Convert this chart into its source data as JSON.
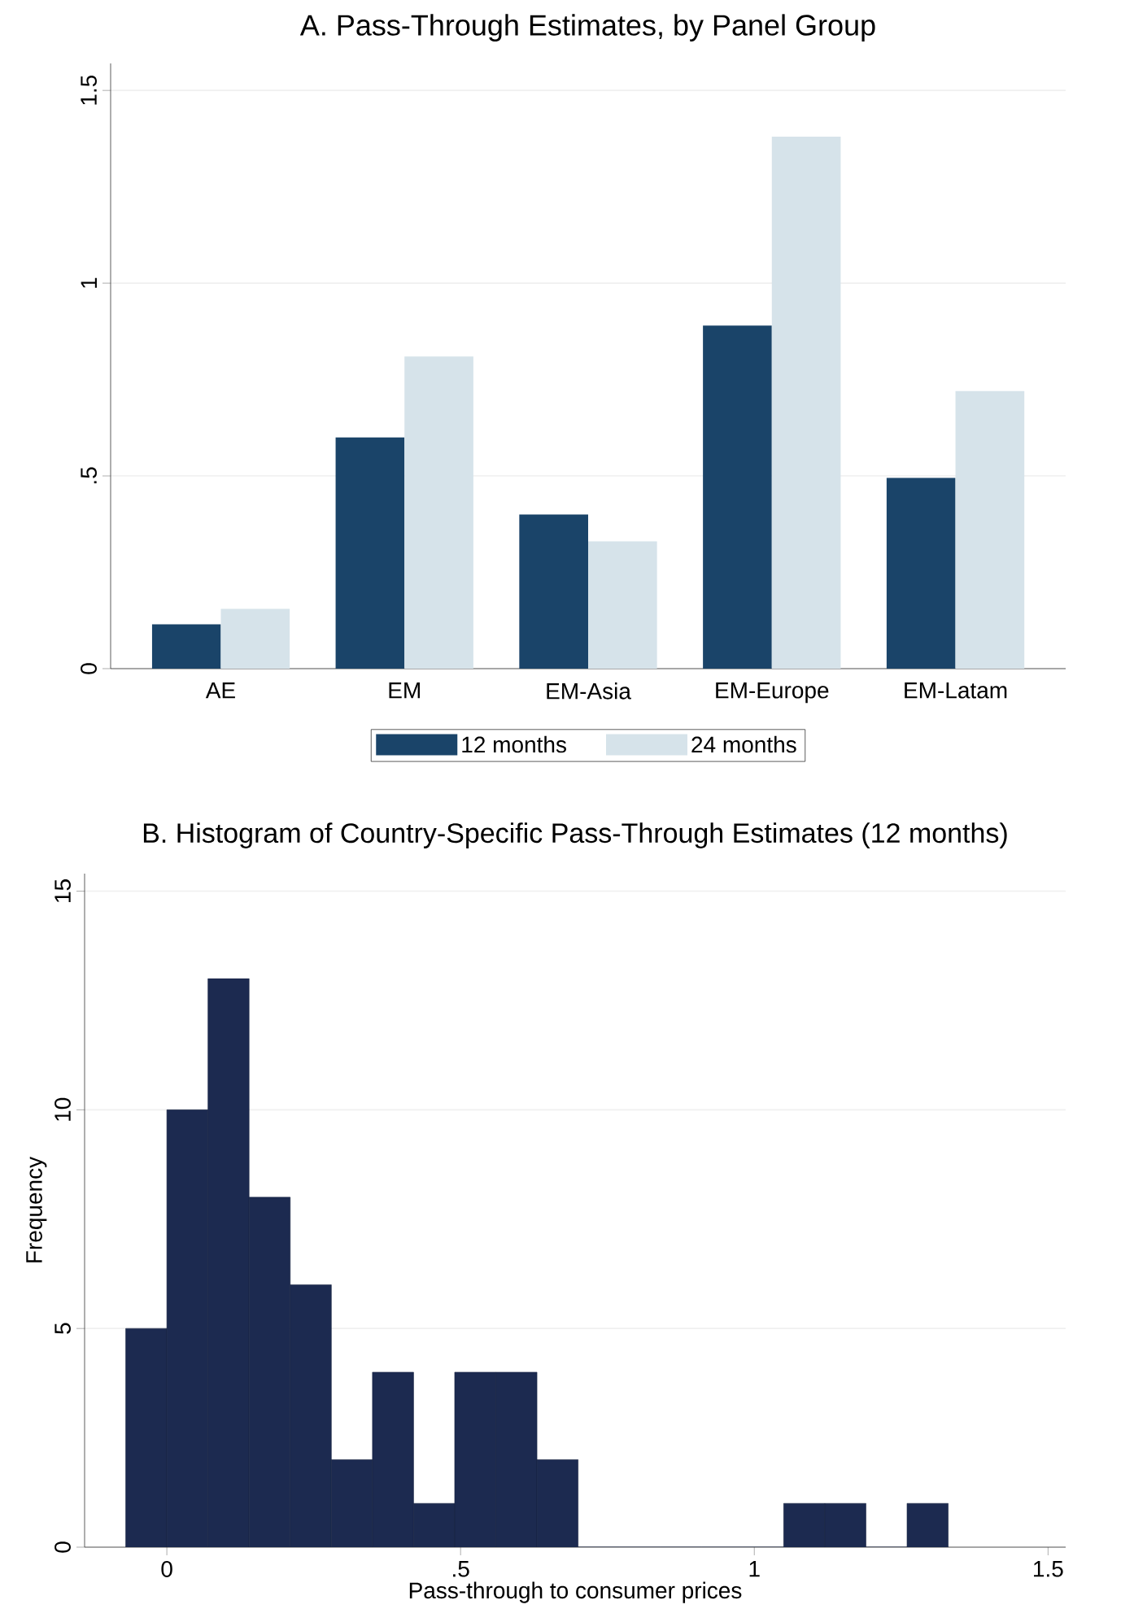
{
  "chart_data": [
    {
      "type": "bar",
      "title": "A. Pass-Through Estimates, by Panel Group",
      "categories": [
        "AE",
        "EM",
        "EM-Asia",
        "EM-Europe",
        "EM-Latam"
      ],
      "series": [
        {
          "name": "12 months",
          "color": "#1a4469",
          "values": [
            0.115,
            0.6,
            0.4,
            0.89,
            0.495
          ]
        },
        {
          "name": "24 months",
          "color": "#d6e3ea",
          "values": [
            0.155,
            0.81,
            0.33,
            1.38,
            0.72
          ]
        }
      ],
      "ylim": [
        0,
        1.57
      ],
      "yticks": [
        0,
        {
          "value": 0.5,
          "label": ".5"
        },
        1,
        1.5
      ],
      "grid": "y",
      "legend": "bottom"
    },
    {
      "type": "histogram",
      "title": "B. Histogram of Country-Specific Pass-Through Estimates (12 months)",
      "xlabel": "Pass-through to consumer prices",
      "ylabel": "Frequency",
      "bins": [
        -0.07,
        0.0,
        0.07,
        0.14,
        0.21,
        0.28,
        0.35,
        0.42,
        0.49,
        0.56,
        0.63,
        0.7,
        0.77,
        0.84,
        0.91,
        0.98,
        1.05,
        1.12,
        1.19,
        1.26,
        1.33
      ],
      "values": [
        5,
        10,
        13,
        8,
        6,
        2,
        4,
        1,
        4,
        4,
        2,
        0,
        0,
        0,
        0,
        0,
        1,
        1,
        0,
        1
      ],
      "color": "#1c2a50",
      "xlim": [
        -0.14,
        1.53
      ],
      "ylim": [
        0,
        15.4
      ],
      "xticks": [
        0,
        {
          "value": 0.5,
          "label": ".5"
        },
        1,
        1.5
      ],
      "yticks": [
        0,
        5,
        10,
        15
      ],
      "grid": "y"
    }
  ]
}
